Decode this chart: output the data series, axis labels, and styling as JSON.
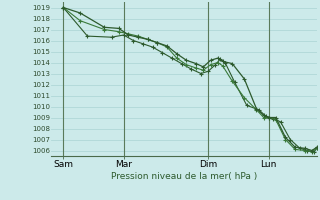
{
  "bg_color": "#cceaea",
  "grid_color": "#b0d8d8",
  "line_color_1": "#2d5a2d",
  "line_color_2": "#3a7a3a",
  "line_color_3": "#1a4a1a",
  "ylabel_text": "Pression niveau de la mer( hPa )",
  "ylim": [
    1005.5,
    1019.5
  ],
  "yticks": [
    1006,
    1007,
    1008,
    1009,
    1010,
    1011,
    1012,
    1013,
    1014,
    1015,
    1016,
    1017,
    1018,
    1019
  ],
  "xtick_labels": [
    "Sam",
    "Mar",
    "Dim",
    "Lun"
  ],
  "xtick_positions": [
    0.5,
    3.0,
    6.5,
    9.0
  ],
  "xlim": [
    0.0,
    11.0
  ],
  "series1_x": [
    0.5,
    1.2,
    2.2,
    2.8,
    3.2,
    3.6,
    4.0,
    4.4,
    4.8,
    5.2,
    5.6,
    6.0,
    6.3,
    6.6,
    6.9,
    7.1,
    7.5,
    8.0,
    8.5,
    8.8,
    9.0,
    9.3,
    9.7,
    10.1,
    10.5,
    10.8,
    11.0
  ],
  "series1_y": [
    1019.0,
    1018.5,
    1017.2,
    1017.1,
    1016.5,
    1016.3,
    1016.1,
    1015.8,
    1015.5,
    1014.8,
    1014.2,
    1013.9,
    1013.6,
    1014.2,
    1014.4,
    1014.1,
    1013.9,
    1012.5,
    1009.8,
    1009.2,
    1009.0,
    1009.0,
    1007.2,
    1006.3,
    1006.2,
    1006.0,
    1006.3
  ],
  "series2_x": [
    0.5,
    1.2,
    2.2,
    2.8,
    3.2,
    3.6,
    4.0,
    4.4,
    4.8,
    5.2,
    5.6,
    6.0,
    6.3,
    6.6,
    6.9,
    7.1,
    7.5,
    8.0,
    8.5,
    8.8,
    9.0,
    9.3,
    9.7,
    10.1,
    10.5,
    10.8,
    11.0
  ],
  "series2_y": [
    1019.0,
    1017.8,
    1017.0,
    1016.8,
    1016.6,
    1016.4,
    1016.1,
    1015.8,
    1015.4,
    1014.4,
    1013.8,
    1013.5,
    1013.3,
    1013.8,
    1014.0,
    1013.7,
    1012.3,
    1010.8,
    1009.7,
    1009.0,
    1009.0,
    1008.8,
    1007.0,
    1006.1,
    1006.0,
    1005.9,
    1006.2
  ],
  "series3_x": [
    0.5,
    1.5,
    2.5,
    3.0,
    3.4,
    3.8,
    4.2,
    4.6,
    5.0,
    5.4,
    5.8,
    6.2,
    6.5,
    6.8,
    7.0,
    7.2,
    7.6,
    8.1,
    8.6,
    8.9,
    9.2,
    9.5,
    9.9,
    10.3,
    10.6,
    10.9,
    11.0
  ],
  "series3_y": [
    1019.0,
    1016.4,
    1016.3,
    1016.5,
    1016.0,
    1015.7,
    1015.4,
    1014.9,
    1014.4,
    1013.9,
    1013.4,
    1013.0,
    1013.2,
    1013.8,
    1014.3,
    1014.0,
    1012.2,
    1010.1,
    1009.7,
    1009.1,
    1008.9,
    1008.6,
    1007.0,
    1006.2,
    1006.0,
    1005.9,
    1006.2
  ]
}
